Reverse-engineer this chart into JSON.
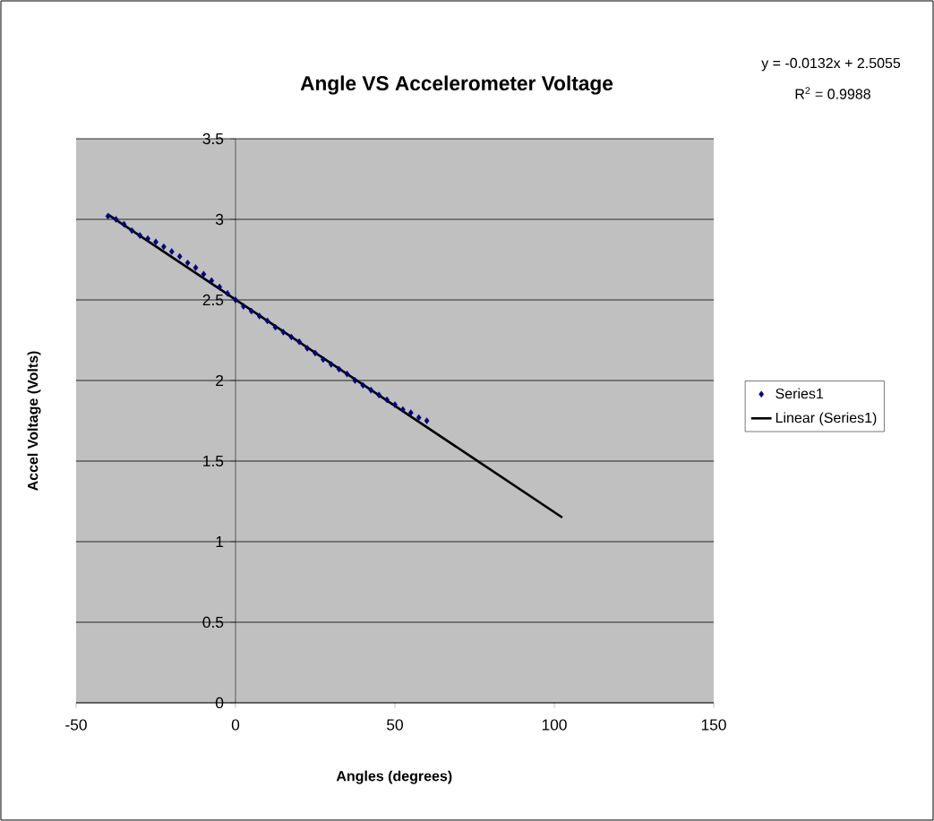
{
  "chart_data": {
    "type": "scatter",
    "title": "Angle VS Accelerometer Voltage",
    "xlabel": "Angles (degrees)",
    "ylabel": "Accel Voltage (Volts)",
    "annotations": [
      "y = -0.0132x + 2.5055",
      "R$^{2}$ = 0.9988"
    ],
    "xlim": [
      -50,
      150
    ],
    "xticks": [
      -50,
      0,
      50,
      100,
      150
    ],
    "ylim": [
      0,
      3.5
    ],
    "yticks": [
      0,
      0.5,
      1,
      1.5,
      2,
      2.5,
      3,
      3.5
    ],
    "grid": "y",
    "legend": "right",
    "series": [
      {
        "name": "Series1",
        "type": "scatter",
        "color": "#000080",
        "marker": "diamond",
        "x": [
          -40,
          -37.5,
          -35,
          -32.5,
          -30,
          -27.5,
          -25,
          -22.5,
          -20,
          -17.5,
          -15,
          -12.5,
          -10,
          -7.5,
          -5,
          -2.5,
          0,
          2.5,
          5,
          7.5,
          10,
          12.5,
          15,
          17.5,
          20,
          22.5,
          25,
          27.5,
          30,
          32.5,
          35,
          37.5,
          40,
          42.5,
          45,
          47.5,
          50,
          52.5,
          55,
          57.5,
          60
        ],
        "values": [
          3.02,
          3.0,
          2.97,
          2.93,
          2.9,
          2.88,
          2.86,
          2.83,
          2.8,
          2.77,
          2.73,
          2.7,
          2.66,
          2.62,
          2.58,
          2.54,
          2.5,
          2.46,
          2.43,
          2.4,
          2.37,
          2.33,
          2.3,
          2.27,
          2.24,
          2.2,
          2.17,
          2.13,
          2.1,
          2.07,
          2.04,
          2.0,
          1.97,
          1.94,
          1.91,
          1.88,
          1.85,
          1.82,
          1.8,
          1.77,
          1.75
        ]
      },
      {
        "name": "Linear (Series1)",
        "type": "line",
        "color": "#000000",
        "marker": "none",
        "line_style": "solid",
        "x": [
          -40,
          102.5
        ],
        "values": [
          3.03,
          1.15
        ]
      }
    ]
  }
}
